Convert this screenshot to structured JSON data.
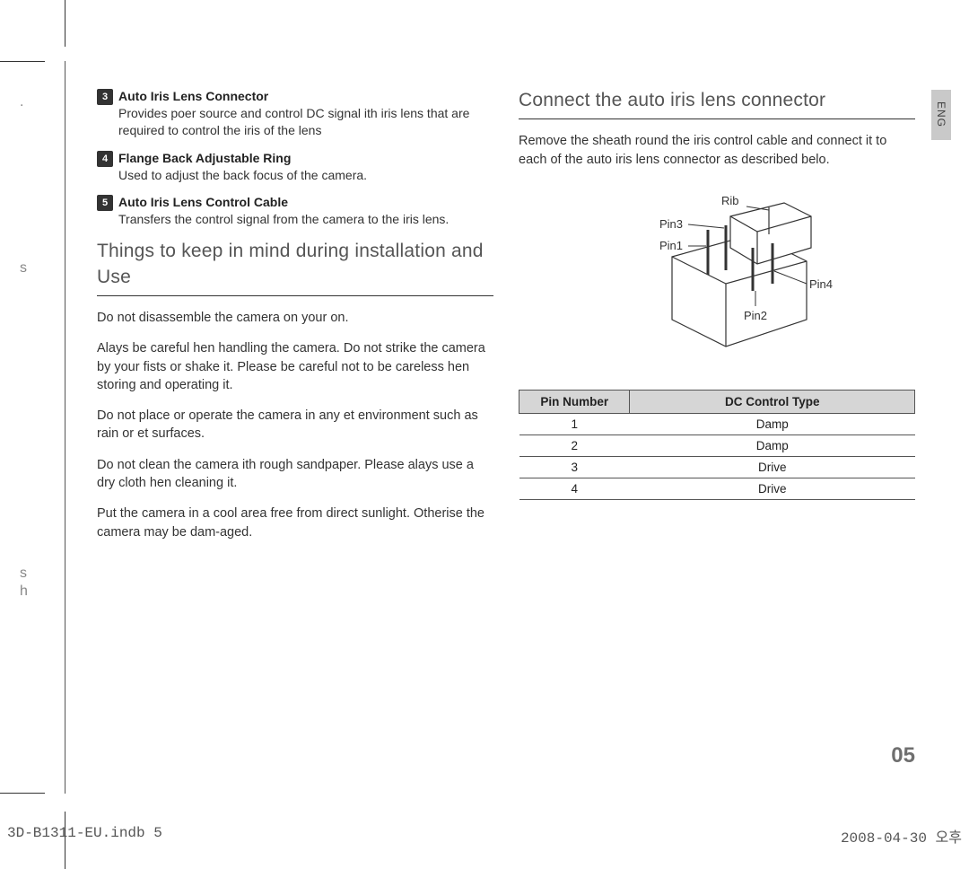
{
  "lang_tab": "ENG",
  "page_number": "05",
  "footer": {
    "left": "3D-B1311-EU.indb   5",
    "right": "2008-04-30   오후"
  },
  "side_artifacts": {
    "a1": ".",
    "a2": "s",
    "a3": "s",
    "a4": "h"
  },
  "left": {
    "items": [
      {
        "num": "3",
        "title": "Auto Iris Lens Connector",
        "desc": "Provides poer source and control DC signal ith iris lens that are required to control the iris of the lens"
      },
      {
        "num": "4",
        "title": "Flange Back Adjustable Ring",
        "desc": "Used to adjust the back focus of the camera."
      },
      {
        "num": "5",
        "title": "Auto Iris Lens Control Cable",
        "desc": "Transfers the control signal from the camera to the iris lens."
      }
    ],
    "heading": "Things to keep in mind during installation   and Use",
    "paras": [
      "Do not disassemble the camera on your on.",
      "Alays be careful hen handling the camera. Do not strike the camera by your fists or shake it. Please be careful not to be careless hen storing and operating it.",
      "Do not place or operate the camera in any et environment such as rain or et surfaces.",
      "Do not clean the camera ith rough sandpaper. Please alays use a dry cloth hen cleaning it.",
      "Put the camera in a cool area free from direct sunlight. Otherise the camera may be dam-aged."
    ]
  },
  "right": {
    "heading": "Connect the auto iris lens connector",
    "intro": "Remove the sheath round the iris control cable and connect it to each of the auto iris lens connector as described belo.",
    "diagram_labels": {
      "rib": "Rib",
      "pin1": "Pin1",
      "pin2": "Pin2",
      "pin3": "Pin3",
      "pin4": "Pin4"
    },
    "table": {
      "headers": [
        "Pin Number",
        "DC Control Type"
      ],
      "rows": [
        [
          "1",
          "Damp"
        ],
        [
          "2",
          "Damp"
        ],
        [
          "3",
          "Drive"
        ],
        [
          "4",
          "Drive"
        ]
      ],
      "col_widths": [
        "28%",
        "72%"
      ]
    }
  }
}
